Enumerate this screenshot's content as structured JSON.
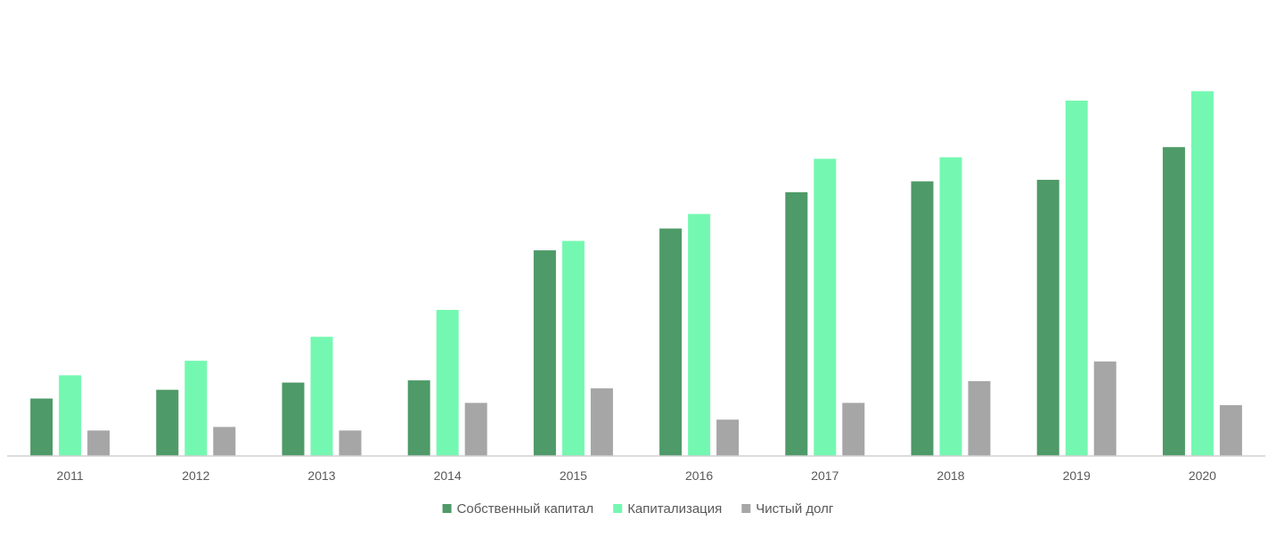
{
  "chart_data": {
    "type": "bar",
    "title": "",
    "xlabel": "",
    "ylabel": "",
    "categories": [
      "2011",
      "2012",
      "2013",
      "2014",
      "2015",
      "2016",
      "2017",
      "2018",
      "2019",
      "2020"
    ],
    "ylim": [
      0,
      500
    ],
    "grid": false,
    "legend_position": "bottom-center",
    "series": [
      {
        "name": "Собственный капитал",
        "color": "#4e9a68",
        "values": [
          79,
          91,
          101,
          104,
          283,
          313,
          363,
          378,
          380,
          425
        ]
      },
      {
        "name": "Капитализация",
        "color": "#74f8b1",
        "values": [
          111,
          131,
          164,
          201,
          296,
          333,
          409,
          411,
          489,
          502
        ]
      },
      {
        "name": "Чистый долг",
        "color": "#a6a6a6",
        "values": [
          35,
          40,
          35,
          73,
          93,
          50,
          73,
          103,
          130,
          70
        ]
      }
    ]
  }
}
